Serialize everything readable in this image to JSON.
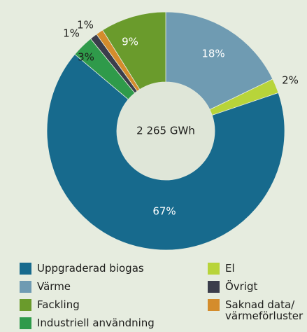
{
  "chart_data": {
    "type": "donut",
    "center_label": "2 265 GWh",
    "categories": [
      "Värme",
      "El",
      "Uppgraderad biogas",
      "Industriell användning",
      "Övrigt",
      "Saknad data/\nvärmeförluster",
      "Fackling"
    ],
    "values": [
      18,
      2,
      67,
      3,
      1,
      1,
      9
    ],
    "value_labels": [
      "18%",
      "2%",
      "67%",
      "3%",
      "1%",
      "1%",
      "9%"
    ],
    "colors": [
      "#6f9bb2",
      "#b8d43a",
      "#176a8d",
      "#2f9a4a",
      "#3b3d4b",
      "#d48c2c",
      "#6a9b2c"
    ]
  }
}
